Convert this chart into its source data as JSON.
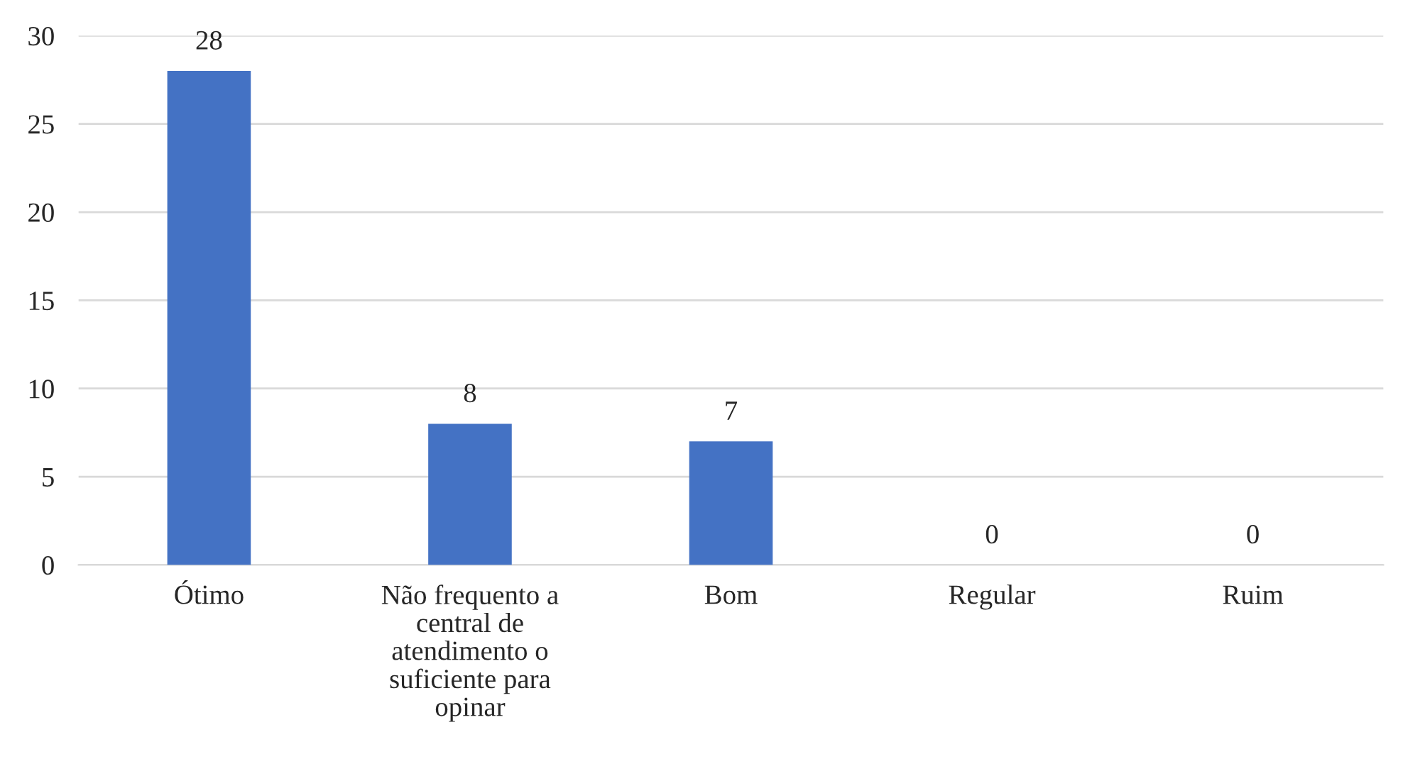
{
  "chart_data": {
    "type": "bar",
    "categories": [
      "Ótimo",
      "Não frequento a\ncentral de\natendimento o\nsuficiente para\nopinar",
      "Bom",
      "Regular",
      "Ruim"
    ],
    "values": [
      28,
      8,
      7,
      0,
      0
    ],
    "color": "#4472c4",
    "ylim": [
      0,
      30
    ],
    "yticks": [
      0,
      5,
      10,
      15,
      20,
      25,
      30
    ],
    "grid": "y",
    "data_labels": true
  }
}
